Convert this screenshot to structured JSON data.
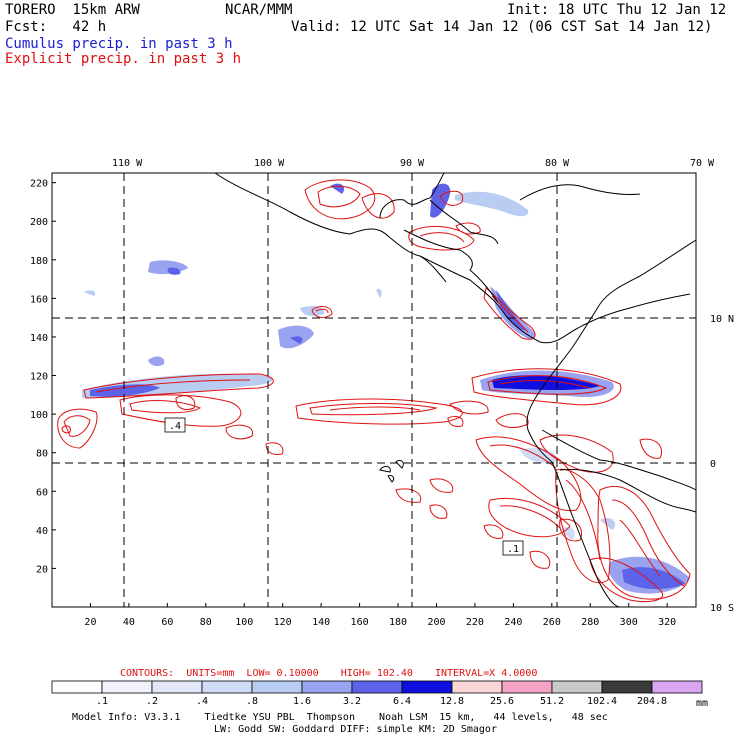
{
  "header": {
    "model": "TORERO  15km ARW",
    "org": "NCAR/MMM",
    "init": "Init: 18 UTC Thu 12 Jan 12",
    "fcst": "Fcst:   42 h",
    "valid": "Valid: 12 UTC Sat 14 Jan 12 (06 CST Sat 14 Jan 12)",
    "field1": "Cumulus precip. in past 3 h",
    "field2": "Explicit precip. in past 3 h"
  },
  "colors": {
    "cumulus": "#1c1ccf",
    "explicit": "#e01010",
    "contour": "#e01010",
    "coast": "#000000"
  },
  "axes": {
    "top_ticks": [
      "110 W",
      "100 W",
      "90 W",
      "80 W",
      "70 W"
    ],
    "right_ticks": [
      "10 N",
      "0",
      "10 S"
    ],
    "left_ticks": [
      "220",
      "200",
      "180",
      "160",
      "140",
      "120",
      "100",
      "80",
      "60",
      "40",
      "20"
    ],
    "bottom_ticks": [
      "20",
      "40",
      "60",
      "80",
      "100",
      "120",
      "140",
      "160",
      "180",
      "200",
      "220",
      "240",
      "260",
      "280",
      "300",
      "320"
    ],
    "x_range": [
      0,
      335
    ],
    "y_range": [
      0,
      225
    ]
  },
  "contours": {
    "label_prefix": "CONTOURS:",
    "units": "UNITS=mm",
    "low": "LOW= 0.10000",
    "high": "HIGH=  102.40",
    "interval": "INTERVAL=X  4.0000",
    "labels": [
      ".4",
      ".1"
    ]
  },
  "colorbar": {
    "unit": "mm",
    "colors": [
      "#ffffff",
      "#f2f2fd",
      "#e3e8f8",
      "#d0dcf5",
      "#b8cdf1",
      "#9aa3ef",
      "#5d63e8",
      "#0f10e0",
      "#fbd6d6",
      "#f4a3c6",
      "#c9c9c9",
      "#3a3a3a",
      "#d9a7f2"
    ],
    "labels": [
      ".1",
      ".2",
      ".4",
      ".8",
      "1.6",
      "3.2",
      "6.4",
      "12.8",
      "25.6",
      "51.2",
      "102.4",
      "204.8"
    ]
  },
  "footer": {
    "line1": "Model Info: V3.3.1    Tiedtke YSU PBL  Thompson    Noah LSM  15 km,   44 levels,   48 sec",
    "line2": "LW: Godd SW: Goddard DIFF: simple KM: 2D Smagor"
  }
}
